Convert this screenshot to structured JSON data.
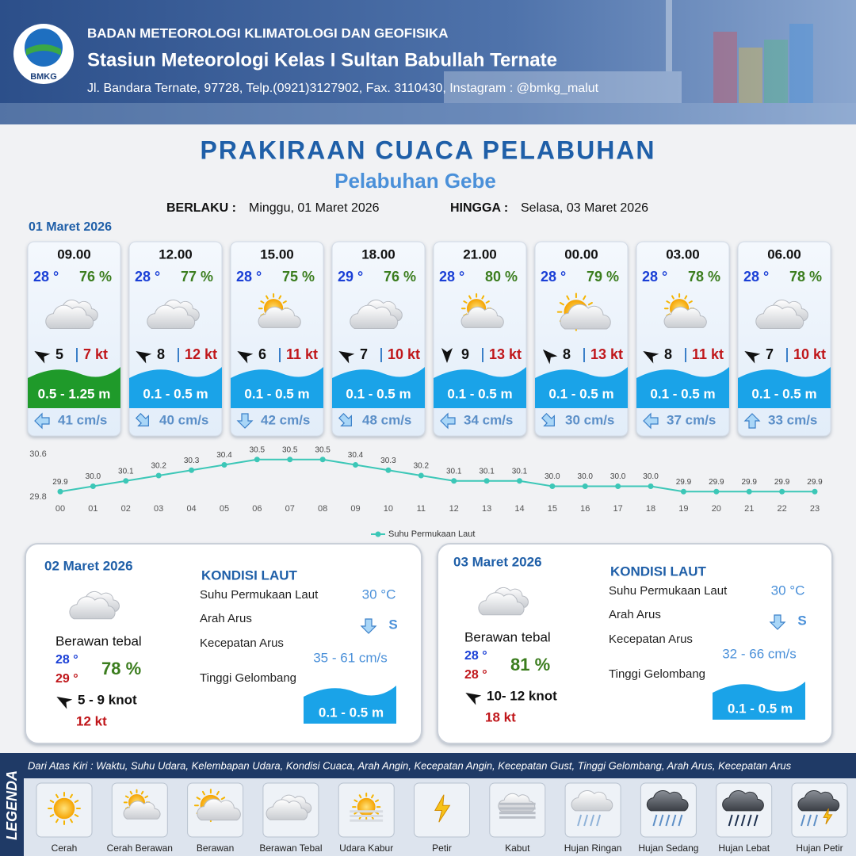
{
  "header": {
    "logo": "BMKG",
    "agency": "BADAN METEOROLOGI KLIMATOLOGI DAN GEOFISIKA",
    "station": "Stasiun Meteorologi Kelas I Sultan Babullah Ternate",
    "address": "Jl. Bandara Ternate, 97728, Telp.(0921)3127902, Fax. 3110430, Instagram : @bmkg_malut"
  },
  "title": "PRAKIRAAN CUACA PELABUHAN",
  "subtitle": "Pelabuhan Gebe",
  "validity": {
    "from_label": "BERLAKU :",
    "from": "Minggu, 01 Maret 2026",
    "to_label": "HINGGA :",
    "to": "Selasa, 03 Maret 2026"
  },
  "day1": {
    "date": "01 Maret 2026",
    "slots": [
      {
        "time": "09.00",
        "temp": "28 °",
        "humidity": "76 %",
        "wind": "5",
        "gust": "7 kt",
        "wave": "0.5 - 1.25 m",
        "current": "41 cm/s"
      },
      {
        "time": "12.00",
        "temp": "28 °",
        "humidity": "77 %",
        "wind": "8",
        "gust": "12 kt",
        "wave": "0.1 - 0.5 m",
        "current": "40 cm/s"
      },
      {
        "time": "15.00",
        "temp": "28 °",
        "humidity": "75 %",
        "wind": "6",
        "gust": "11 kt",
        "wave": "0.1 - 0.5 m",
        "current": "42 cm/s"
      },
      {
        "time": "18.00",
        "temp": "29 °",
        "humidity": "76 %",
        "wind": "7",
        "gust": "10 kt",
        "wave": "0.1 - 0.5 m",
        "current": "48 cm/s"
      },
      {
        "time": "21.00",
        "temp": "28 °",
        "humidity": "80 %",
        "wind": "9",
        "gust": "13 kt",
        "wave": "0.1 - 0.5 m",
        "current": "34 cm/s"
      },
      {
        "time": "00.00",
        "temp": "28 °",
        "humidity": "79 %",
        "wind": "8",
        "gust": "13 kt",
        "wave": "0.1 - 0.5 m",
        "current": "30 cm/s"
      },
      {
        "time": "03.00",
        "temp": "28 °",
        "humidity": "78 %",
        "wind": "8",
        "gust": "11 kt",
        "wave": "0.1 - 0.5 m",
        "current": "37 cm/s"
      },
      {
        "time": "06.00",
        "temp": "28 °",
        "humidity": "78 %",
        "wind": "7",
        "gust": "10 kt",
        "wave": "0.1 - 0.5 m",
        "current": "33 cm/s"
      }
    ]
  },
  "chart_data": {
    "type": "line",
    "categories": [
      "00",
      "01",
      "02",
      "03",
      "04",
      "05",
      "06",
      "07",
      "08",
      "09",
      "10",
      "11",
      "12",
      "13",
      "14",
      "15",
      "16",
      "17",
      "18",
      "19",
      "20",
      "21",
      "22",
      "23"
    ],
    "series": [
      {
        "name": "Suhu Permukaan Laut",
        "color": "#3cc7b7",
        "values": [
          29.9,
          30.0,
          30.1,
          30.2,
          30.3,
          30.4,
          30.5,
          30.5,
          30.5,
          30.4,
          30.3,
          30.2,
          30.1,
          30.1,
          30.1,
          30.0,
          30.0,
          30.0,
          30.0,
          29.9,
          29.9,
          29.9,
          29.9,
          29.9
        ],
        "value_labels": [
          "29.9",
          "30.0",
          "30.1",
          "30.2",
          "30.3",
          "30.4",
          "30.5",
          "30.5",
          "30.5",
          "30.4",
          "30.3",
          "30.2",
          "30.1",
          "30.1",
          "30.1",
          "30.0",
          "30.0",
          "30.0",
          "30.0",
          "29.9",
          "29.9",
          "29.9",
          "29.9",
          "29.9"
        ]
      }
    ],
    "ylim": [
      29.8,
      30.6
    ],
    "yticks": [
      29.8,
      30.6
    ],
    "grid": false,
    "legend": "bottom"
  },
  "days": [
    {
      "date": "02 Maret 2026",
      "condition": "Berawan tebal",
      "temp_min": "28 °",
      "temp_max": "29 °",
      "humidity": "78 %",
      "wind": "5  - 9 knot",
      "gust": "12 kt",
      "sea_title": "KONDISI LAUT",
      "sea_labels": [
        "Suhu Permukaan Laut",
        "Arah Arus",
        "Kecepatan Arus",
        "Tinggi Gelombang"
      ],
      "sst": "30 °C",
      "current_dir": "S",
      "current_speed": "35  - 61 cm/s",
      "wave": "0.1 - 0.5 m"
    },
    {
      "date": "03 Maret 2026",
      "condition": "Berawan tebal",
      "temp_min": "28 °",
      "temp_max": "28 °",
      "humidity": "81 %",
      "wind": "10- 12 knot",
      "gust": "18 kt",
      "sea_title": "KONDISI LAUT",
      "sea_labels": [
        "Suhu Permukaan Laut",
        "Arah Arus",
        "Kecepatan Arus",
        "Tinggi Gelombang"
      ],
      "sst": "30 °C",
      "current_dir": "S",
      "current_speed": "32  - 66 cm/s",
      "wave": "0.1 - 0.5 m"
    }
  ],
  "legend": {
    "title": "LEGENDA",
    "description": "Dari Atas Kiri : Waktu, Suhu Udara, Kelembapan Udara, Kondisi Cuaca, Arah Angin, Kecepatan Angin, Kecepatan Gust, Tinggi Gelombang, Arah Arus, Kecepatan Arus",
    "items": [
      "Cerah",
      "Cerah Berawan",
      "Berawan",
      "Berawan Tebal",
      "Udara Kabur",
      "Petir",
      "Kabut",
      "Hujan Ringan",
      "Hujan Sedang",
      "Hujan Lebat",
      "Hujan Petir"
    ]
  }
}
